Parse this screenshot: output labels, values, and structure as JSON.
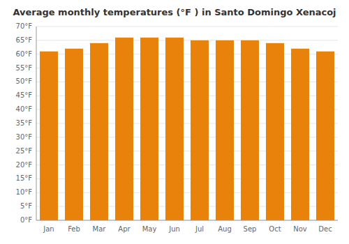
{
  "chart_data": {
    "type": "bar",
    "title": "Average monthly temperatures (°F ) in Santo Domingo Xenacoj",
    "categories": [
      "Jan",
      "Feb",
      "Mar",
      "Apr",
      "May",
      "Jun",
      "Jul",
      "Aug",
      "Sep",
      "Oct",
      "Nov",
      "Dec"
    ],
    "values": [
      61,
      62,
      64,
      66,
      66,
      66,
      65,
      65,
      65,
      64,
      62,
      61
    ],
    "color": "#E8820A",
    "ylim": [
      0,
      70
    ],
    "yticks": [
      {
        "value": 0,
        "label": "0°F"
      },
      {
        "value": 5,
        "label": "5°F"
      },
      {
        "value": 10,
        "label": "10°F"
      },
      {
        "value": 15,
        "label": "15°F"
      },
      {
        "value": 20,
        "label": "20°F"
      },
      {
        "value": 25,
        "label": "25°F"
      },
      {
        "value": 30,
        "label": "30°F"
      },
      {
        "value": 35,
        "label": "35°F"
      },
      {
        "value": 40,
        "label": "40°F"
      },
      {
        "value": 45,
        "label": "45°F"
      },
      {
        "value": 50,
        "label": "50°F"
      },
      {
        "value": 55,
        "label": "55°F"
      },
      {
        "value": 60,
        "label": "60°F"
      },
      {
        "value": 65,
        "label": "65°F"
      },
      {
        "value": 70,
        "label": "70°F"
      }
    ],
    "grid": true
  }
}
